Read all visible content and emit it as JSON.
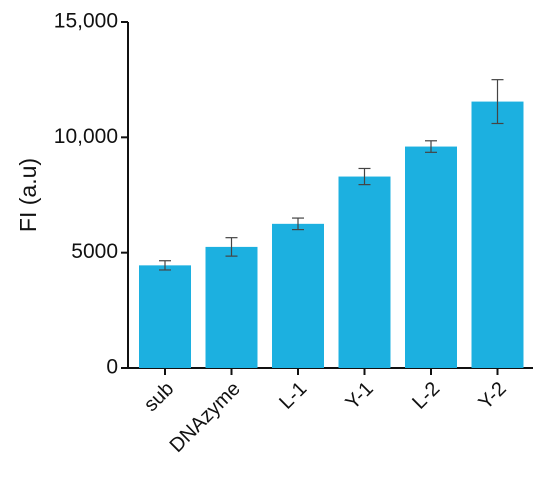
{
  "chart_data": {
    "type": "bar",
    "y_label": "FI (a.u)",
    "categories": [
      "sub",
      "DNAzyme",
      "L-1",
      "Y-1",
      "L-2",
      "Y-2"
    ],
    "values": [
      4450,
      5250,
      6250,
      8300,
      9600,
      11550
    ],
    "errors": [
      200,
      400,
      250,
      350,
      250,
      950
    ],
    "color": "#1cb0e0",
    "ylim": [
      0,
      15000
    ],
    "yticks": [
      0,
      5000,
      {
        "value": 10000,
        "label": "10,000"
      },
      {
        "value": 15000,
        "label": "15,000"
      }
    ],
    "grid": false
  }
}
